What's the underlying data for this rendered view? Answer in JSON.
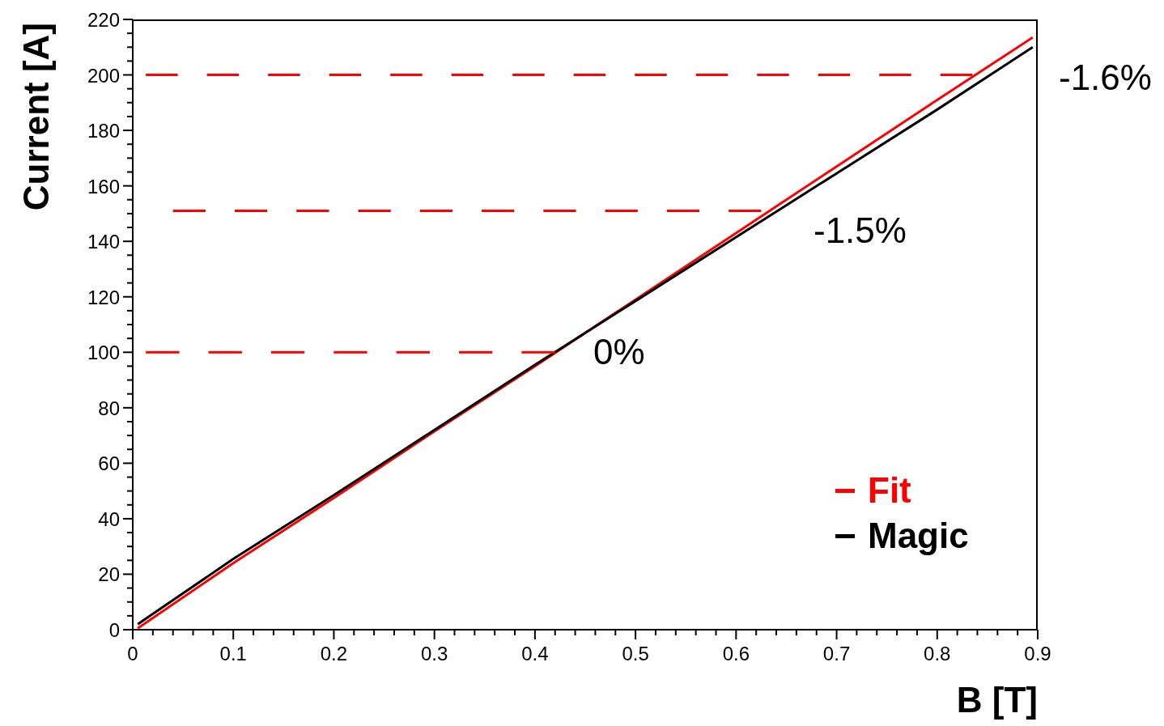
{
  "chart_data": {
    "type": "line",
    "xlabel": "B [T]",
    "ylabel": "Current [A]",
    "xlim": [
      0,
      0.9
    ],
    "ylim": [
      0,
      220
    ],
    "xticks": [
      0,
      {
        "value": 0.02,
        "label": null
      },
      {
        "value": 0.04,
        "label": null
      },
      {
        "value": 0.06,
        "label": null
      },
      {
        "value": 0.08,
        "label": null
      },
      0.1,
      {
        "value": 0.12,
        "label": null
      },
      {
        "value": 0.14,
        "label": null
      },
      {
        "value": 0.16,
        "label": null
      },
      {
        "value": 0.18,
        "label": null
      },
      0.2,
      {
        "value": 0.22,
        "label": null
      },
      {
        "value": 0.24,
        "label": null
      },
      {
        "value": 0.26,
        "label": null
      },
      {
        "value": 0.28,
        "label": null
      },
      0.3,
      {
        "value": 0.32,
        "label": null
      },
      {
        "value": 0.34,
        "label": null
      },
      {
        "value": 0.36,
        "label": null
      },
      {
        "value": 0.38,
        "label": null
      },
      0.4,
      {
        "value": 0.42,
        "label": null
      },
      {
        "value": 0.44,
        "label": null
      },
      {
        "value": 0.46,
        "label": null
      },
      {
        "value": 0.48,
        "label": null
      },
      0.5,
      {
        "value": 0.52,
        "label": null
      },
      {
        "value": 0.54,
        "label": null
      },
      {
        "value": 0.56,
        "label": null
      },
      {
        "value": 0.58,
        "label": null
      },
      0.6,
      {
        "value": 0.62,
        "label": null
      },
      {
        "value": 0.64,
        "label": null
      },
      {
        "value": 0.66,
        "label": null
      },
      {
        "value": 0.68,
        "label": null
      },
      0.7,
      {
        "value": 0.72,
        "label": null
      },
      {
        "value": 0.74,
        "label": null
      },
      {
        "value": 0.76,
        "label": null
      },
      {
        "value": 0.78,
        "label": null
      },
      0.8,
      {
        "value": 0.82,
        "label": null
      },
      {
        "value": 0.84,
        "label": null
      },
      {
        "value": 0.86,
        "label": null
      },
      {
        "value": 0.88,
        "label": null
      },
      0.9
    ],
    "yticks": [
      0,
      {
        "value": 5,
        "label": null
      },
      {
        "value": 10,
        "label": null
      },
      {
        "value": 15,
        "label": null
      },
      20,
      {
        "value": 25,
        "label": null
      },
      {
        "value": 30,
        "label": null
      },
      {
        "value": 35,
        "label": null
      },
      40,
      {
        "value": 45,
        "label": null
      },
      {
        "value": 50,
        "label": null
      },
      {
        "value": 55,
        "label": null
      },
      60,
      {
        "value": 65,
        "label": null
      },
      {
        "value": 70,
        "label": null
      },
      {
        "value": 75,
        "label": null
      },
      80,
      {
        "value": 85,
        "label": null
      },
      {
        "value": 90,
        "label": null
      },
      {
        "value": 95,
        "label": null
      },
      100,
      {
        "value": 105,
        "label": null
      },
      {
        "value": 110,
        "label": null
      },
      {
        "value": 115,
        "label": null
      },
      120,
      {
        "value": 125,
        "label": null
      },
      {
        "value": 130,
        "label": null
      },
      {
        "value": 135,
        "label": null
      },
      140,
      {
        "value": 145,
        "label": null
      },
      {
        "value": 150,
        "label": null
      },
      {
        "value": 155,
        "label": null
      },
      160,
      {
        "value": 165,
        "label": null
      },
      {
        "value": 170,
        "label": null
      },
      {
        "value": 175,
        "label": null
      },
      180,
      {
        "value": 185,
        "label": null
      },
      {
        "value": 190,
        "label": null
      },
      {
        "value": 195,
        "label": null
      },
      200,
      {
        "value": 205,
        "label": null
      },
      {
        "value": 210,
        "label": null
      },
      {
        "value": 215,
        "label": null
      },
      220
    ],
    "legend": "bottom right",
    "marker": "none",
    "series": [
      {
        "name": "Fit",
        "color": "#ff0000",
        "line_style": "solid",
        "x": [
          0.005,
          0.1,
          0.2,
          0.3,
          0.4,
          0.5,
          0.6,
          0.7,
          0.8,
          0.895
        ],
        "values": [
          0.5,
          24,
          47.5,
          71.5,
          95,
          119,
          143,
          167,
          191,
          213.5
        ]
      },
      {
        "name": "Magic",
        "color": "#000000",
        "line_style": "solid",
        "x": [
          0.005,
          0.1,
          0.2,
          0.3,
          0.4,
          0.5,
          0.6,
          0.7,
          0.8,
          0.895
        ],
        "values": [
          2,
          25.5,
          48.5,
          72,
          95.5,
          118.5,
          141.5,
          164.5,
          187.5,
          210
        ]
      },
      {
        "color": "#ff0000",
        "line_style": "dashed",
        "x": [
          0.013,
          0.835
        ],
        "values": [
          200,
          200
        ]
      },
      {
        "color": "#ff0000",
        "line_style": "dashed",
        "x": [
          0.04,
          0.625
        ],
        "values": [
          151,
          151
        ]
      },
      {
        "color": "#ff0000",
        "line_style": "dashed",
        "x": [
          0.013,
          0.42
        ],
        "values": [
          100,
          100
        ]
      }
    ],
    "annotations": [
      "-1.6%",
      "-1.5%",
      "0%"
    ]
  }
}
